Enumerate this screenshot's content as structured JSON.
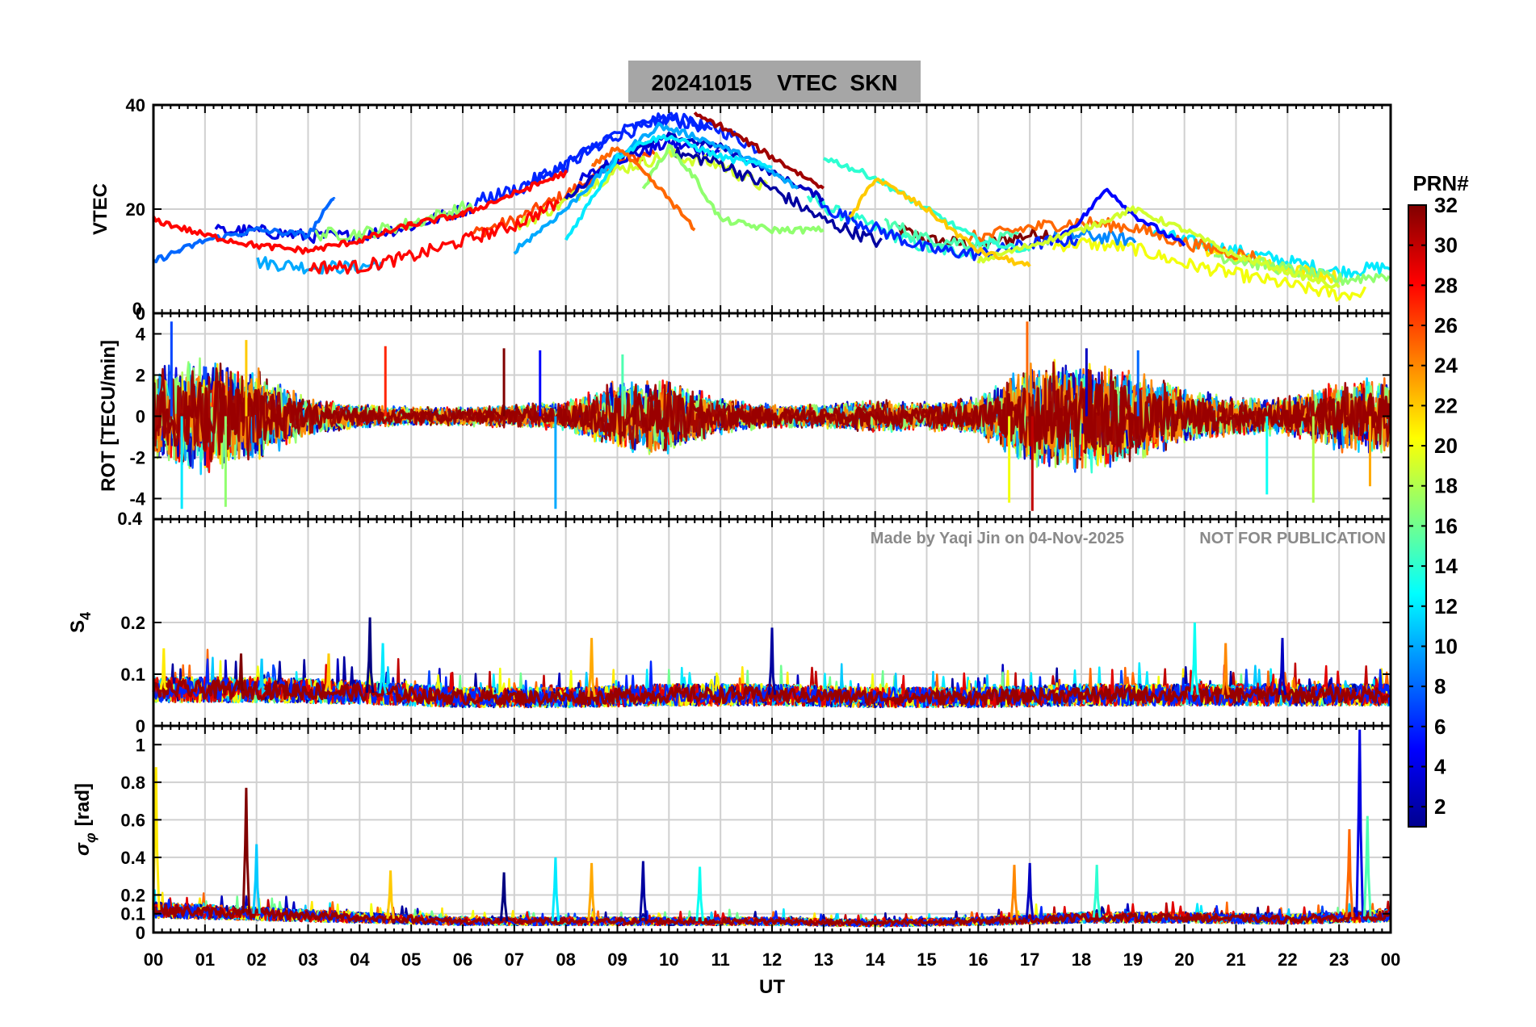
{
  "title": "20241015    VTEC  SKN",
  "xlabel": "UT",
  "watermark": {
    "made_by": "Made by Yaqi Jin on 04-Nov-2025",
    "notice": "NOT FOR PUBLICATION"
  },
  "colors": {
    "title_bg": "#a6a6a6",
    "grid": "#d0d0d0",
    "axes": "#000000"
  },
  "colorbar": {
    "label": "PRN#",
    "min": 1,
    "max": 32,
    "colormap": "jet",
    "ticks": [
      "2",
      "4",
      "6",
      "8",
      "10",
      "12",
      "14",
      "16",
      "18",
      "20",
      "22",
      "24",
      "26",
      "28",
      "30",
      "32"
    ]
  },
  "chart_data": [
    {
      "type": "line",
      "panel": "vtec",
      "ylabel": "VTEC",
      "ylim": [
        0,
        40
      ],
      "yticks": [
        {
          "value": 0,
          "label": "0"
        },
        {
          "value": 20,
          "label": "20"
        },
        {
          "value": 40,
          "label": "40"
        }
      ],
      "xlim": [
        0,
        24
      ],
      "xticks": [
        "00",
        "01",
        "02",
        "03",
        "04",
        "05",
        "06",
        "07",
        "08",
        "09",
        "10",
        "11",
        "12",
        "13",
        "14",
        "15",
        "16",
        "17",
        "18",
        "19",
        "20",
        "21",
        "22",
        "23",
        "00"
      ],
      "trend": {
        "x": [
          0,
          1,
          2,
          3,
          4,
          5,
          6,
          7,
          8,
          9,
          10,
          11,
          12,
          13,
          14,
          15,
          16,
          17,
          18,
          19,
          20,
          21,
          22,
          23,
          24
        ],
        "y": [
          15,
          13,
          13,
          12,
          12,
          14,
          17,
          20,
          25,
          31,
          34,
          32,
          27,
          21,
          17,
          13,
          12,
          14,
          15,
          14,
          11,
          9,
          7,
          5,
          6
        ]
      },
      "series": [
        {
          "name": "PRN 3",
          "prn": 3,
          "x": [
            8.0,
            9.0,
            10.0,
            11.0,
            12.0,
            13.0
          ],
          "y": [
            22,
            30,
            34,
            32,
            27,
            22
          ]
        },
        {
          "name": "PRN 5",
          "prn": 5,
          "x": [
            17.5,
            18.0,
            18.5,
            19.0,
            19.5,
            20.0
          ],
          "y": [
            14,
            18,
            24,
            19,
            16,
            13
          ]
        },
        {
          "name": "PRN 8",
          "prn": 8,
          "x": [
            0.0,
            0.5,
            1.0,
            2.0,
            3.0,
            3.5
          ],
          "y": [
            10,
            12,
            14,
            16,
            15,
            22
          ]
        },
        {
          "name": "PRN 10",
          "prn": 10,
          "x": [
            7.0,
            8.0,
            9.0,
            9.8,
            10.5,
            11.5,
            12.5
          ],
          "y": [
            12,
            20,
            30,
            36,
            34,
            30,
            24
          ]
        },
        {
          "name": "PRN 12",
          "prn": 12,
          "x": [
            8.0,
            8.5,
            9.0,
            9.5,
            10.0,
            11.0,
            12.0
          ],
          "y": [
            14,
            22,
            30,
            33,
            34,
            30,
            28
          ]
        },
        {
          "name": "PRN 14",
          "prn": 14,
          "x": [
            13.0,
            14.0,
            15.0,
            16.0,
            17.0
          ],
          "y": [
            30,
            26,
            20,
            14,
            12
          ]
        },
        {
          "name": "PRN 17",
          "prn": 17,
          "x": [
            9.5,
            10.0,
            10.5,
            11.0,
            12.0,
            13.0
          ],
          "y": [
            24,
            32,
            26,
            18,
            16,
            16
          ]
        },
        {
          "name": "PRN 19",
          "prn": 19,
          "x": [
            16.0,
            17.0,
            18.0,
            19.0,
            20.0,
            21.0,
            22.0,
            23.0
          ],
          "y": [
            10,
            13,
            16,
            20,
            16,
            11,
            8,
            5
          ]
        },
        {
          "name": "PRN 22",
          "prn": 22,
          "x": [
            13.5,
            14.0,
            15.0,
            16.0,
            17.0
          ],
          "y": [
            18,
            26,
            20,
            12,
            9
          ]
        },
        {
          "name": "PRN 25",
          "prn": 25,
          "x": [
            8.5,
            9.0,
            10.0,
            10.5
          ],
          "y": [
            28,
            32,
            22,
            16
          ]
        },
        {
          "name": "PRN 28",
          "prn": 28,
          "x": [
            0.0,
            1.0,
            2.0,
            3.0,
            4.0,
            5.0,
            6.0,
            7.0,
            8.0
          ],
          "y": [
            18,
            15,
            13,
            12,
            14,
            17,
            19,
            23,
            27
          ]
        },
        {
          "name": "PRN 31",
          "prn": 31,
          "x": [
            10.5,
            11.0,
            12.0,
            13.0
          ],
          "y": [
            38,
            36,
            30,
            24
          ]
        }
      ]
    },
    {
      "type": "line",
      "panel": "rot",
      "ylabel": "ROT [TECU/min]",
      "ylim": [
        -5,
        5
      ],
      "yticks": [
        {
          "value": -4,
          "label": "-4"
        },
        {
          "value": -2,
          "label": "-2"
        },
        {
          "value": 0,
          "label": "0"
        },
        {
          "value": 2,
          "label": "2"
        },
        {
          "value": 4,
          "label": "4"
        }
      ],
      "envelope": {
        "x": [
          0,
          1,
          2,
          3,
          4,
          5,
          6,
          7,
          8,
          9,
          10,
          11,
          12,
          13,
          14,
          15,
          16,
          17,
          18,
          19,
          20,
          21,
          22,
          23,
          24
        ],
        "y": [
          2.0,
          2.5,
          2.0,
          0.8,
          0.5,
          0.4,
          0.4,
          0.5,
          0.6,
          1.5,
          1.6,
          0.8,
          0.5,
          0.5,
          0.7,
          0.6,
          0.8,
          2.2,
          2.4,
          2.0,
          1.2,
          0.8,
          0.8,
          1.5,
          1.6
        ]
      },
      "spikes": [
        {
          "x": 0.35,
          "y": 4.6
        },
        {
          "x": 0.55,
          "y": -4.5
        },
        {
          "x": 1.4,
          "y": -4.4
        },
        {
          "x": 1.8,
          "y": 3.7
        },
        {
          "x": 4.5,
          "y": 3.4
        },
        {
          "x": 6.8,
          "y": 3.3
        },
        {
          "x": 7.5,
          "y": 3.2
        },
        {
          "x": 7.8,
          "y": -4.5
        },
        {
          "x": 9.1,
          "y": 3.0
        },
        {
          "x": 16.6,
          "y": -4.2
        },
        {
          "x": 16.95,
          "y": 4.6
        },
        {
          "x": 17.05,
          "y": -4.6
        },
        {
          "x": 18.1,
          "y": 3.3
        },
        {
          "x": 19.1,
          "y": 3.2
        },
        {
          "x": 21.6,
          "y": -3.8
        },
        {
          "x": 22.5,
          "y": -4.2
        },
        {
          "x": 23.6,
          "y": -3.4
        }
      ]
    },
    {
      "type": "line",
      "panel": "s4",
      "ylabel": "S4",
      "ylabel_main": "S",
      "ylabel_sub": "4",
      "ylim": [
        0,
        0.4
      ],
      "yticks": [
        {
          "value": 0,
          "label": "0"
        },
        {
          "value": 0.1,
          "label": "0.1"
        },
        {
          "value": 0.2,
          "label": "0.2"
        }
      ],
      "baseline": {
        "x": [
          0,
          2,
          4,
          6,
          8,
          10,
          12,
          14,
          16,
          18,
          20,
          22,
          24
        ],
        "y": [
          0.07,
          0.07,
          0.065,
          0.055,
          0.055,
          0.06,
          0.06,
          0.055,
          0.055,
          0.06,
          0.06,
          0.06,
          0.06
        ]
      },
      "spikes": [
        {
          "x": 0.2,
          "y": 0.15
        },
        {
          "x": 1.7,
          "y": 0.14
        },
        {
          "x": 2.1,
          "y": 0.13
        },
        {
          "x": 3.4,
          "y": 0.14
        },
        {
          "x": 4.2,
          "y": 0.21
        },
        {
          "x": 4.45,
          "y": 0.16
        },
        {
          "x": 8.5,
          "y": 0.17
        },
        {
          "x": 12.0,
          "y": 0.19
        },
        {
          "x": 20.2,
          "y": 0.2
        },
        {
          "x": 20.8,
          "y": 0.16
        },
        {
          "x": 21.9,
          "y": 0.17
        }
      ]
    },
    {
      "type": "line",
      "panel": "sigma_phi",
      "ylabel": "σφ [rad]",
      "ylabel_main": "σ",
      "ylabel_sub": "φ",
      "ylabel_unit": "[rad]",
      "ylim": [
        0,
        1.1
      ],
      "yticks": [
        {
          "value": 0,
          "label": "0"
        },
        {
          "value": 0.1,
          "label": "0.1"
        },
        {
          "value": 0.2,
          "label": "0.2"
        },
        {
          "value": 0.4,
          "label": "0.4"
        },
        {
          "value": 0.6,
          "label": "0.6"
        },
        {
          "value": 0.8,
          "label": "0.8"
        },
        {
          "value": 1,
          "label": "1"
        }
      ],
      "baseline": {
        "x": [
          0,
          2,
          4,
          6,
          8,
          10,
          12,
          14,
          16,
          18,
          20,
          22,
          24
        ],
        "y": [
          0.12,
          0.1,
          0.08,
          0.06,
          0.06,
          0.06,
          0.06,
          0.05,
          0.06,
          0.08,
          0.08,
          0.07,
          0.09
        ]
      },
      "spikes": [
        {
          "x": 0.05,
          "y": 0.88
        },
        {
          "x": 1.8,
          "y": 0.77
        },
        {
          "x": 2.0,
          "y": 0.47
        },
        {
          "x": 4.6,
          "y": 0.33
        },
        {
          "x": 6.8,
          "y": 0.32
        },
        {
          "x": 7.8,
          "y": 0.4
        },
        {
          "x": 8.5,
          "y": 0.37
        },
        {
          "x": 9.5,
          "y": 0.38
        },
        {
          "x": 10.6,
          "y": 0.35
        },
        {
          "x": 16.7,
          "y": 0.36
        },
        {
          "x": 17.0,
          "y": 0.37
        },
        {
          "x": 18.3,
          "y": 0.36
        },
        {
          "x": 23.2,
          "y": 0.55
        },
        {
          "x": 23.4,
          "y": 1.08
        },
        {
          "x": 23.55,
          "y": 0.62
        }
      ]
    }
  ]
}
